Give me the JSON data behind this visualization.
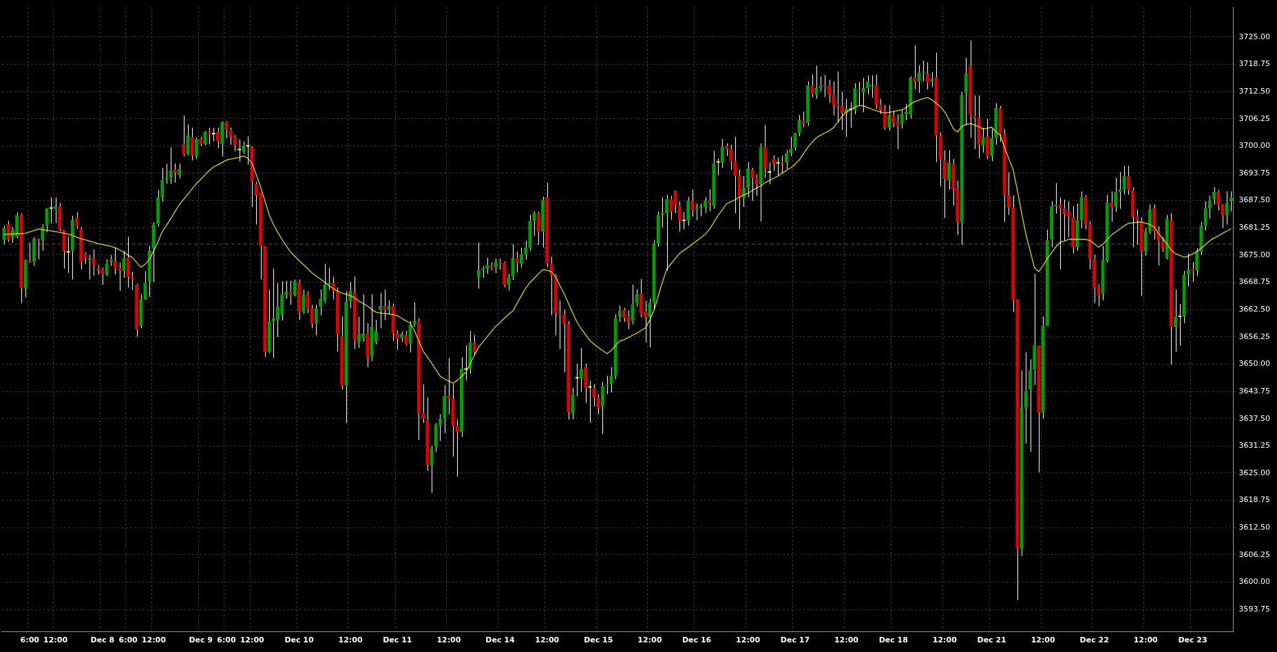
{
  "chart_data": {
    "type": "candlestick",
    "categories": [
      null,
      null,
      null,
      null,
      null,
      null,
      "6:00",
      null,
      null,
      null,
      null,
      null,
      "12:00",
      null,
      null,
      null,
      null,
      null,
      null,
      null,
      null,
      null,
      null,
      "Dec 8",
      null,
      null,
      null,
      null,
      null,
      "6:00",
      null,
      null,
      null,
      null,
      null,
      "12:00",
      null,
      null,
      null,
      null,
      null,
      null,
      null,
      null,
      null,
      null,
      "Dec 9",
      null,
      null,
      null,
      null,
      null,
      "6:00",
      null,
      null,
      null,
      null,
      null,
      "12:00",
      null,
      null,
      null,
      null,
      null,
      null,
      null,
      null,
      null,
      null,
      "Dec 10",
      null,
      null,
      null,
      null,
      null,
      null,
      null,
      null,
      null,
      null,
      null,
      "12:00",
      null,
      null,
      null,
      null,
      null,
      null,
      null,
      null,
      null,
      null,
      "Dec 11",
      null,
      null,
      null,
      null,
      null,
      null,
      null,
      null,
      null,
      null,
      null,
      "12:00",
      null,
      null,
      null,
      null,
      null,
      null,
      null,
      null,
      null,
      null,
      null,
      "Dec 14",
      null,
      null,
      null,
      null,
      null,
      null,
      null,
      null,
      null,
      null,
      "12:00",
      null,
      null,
      null,
      null,
      null,
      null,
      null,
      null,
      null,
      null,
      null,
      "Dec 15",
      null,
      null,
      null,
      null,
      null,
      null,
      null,
      null,
      null,
      null,
      null,
      "12:00",
      null,
      null,
      null,
      null,
      null,
      null,
      null,
      null,
      null,
      null,
      "Dec 16",
      null,
      null,
      null,
      null,
      null,
      null,
      null,
      null,
      null,
      null,
      null,
      "12:00",
      null,
      null,
      null,
      null,
      null,
      null,
      null,
      null,
      null,
      null,
      "Dec 17",
      null,
      null,
      null,
      null,
      null,
      null,
      null,
      null,
      null,
      null,
      null,
      "12:00",
      null,
      null,
      null,
      null,
      null,
      null,
      null,
      null,
      null,
      null,
      "Dec 18",
      null,
      null,
      null,
      null,
      null,
      null,
      null,
      null,
      null,
      null,
      null,
      "12:00",
      null,
      null,
      null,
      null,
      null,
      null,
      null,
      null,
      null,
      null,
      "Dec 21",
      null,
      null,
      null,
      null,
      null,
      null,
      null,
      null,
      null,
      null,
      null,
      "12:00",
      null,
      null,
      null,
      null,
      null,
      null,
      null,
      null,
      null,
      null,
      null,
      "Dec 22",
      null,
      null,
      null,
      null,
      null,
      null,
      null,
      null,
      null,
      null,
      null,
      "12:00",
      null,
      null,
      null,
      null,
      null,
      null,
      null,
      null,
      null,
      null,
      "Dec 23",
      null,
      null,
      null,
      null,
      null,
      null,
      null,
      null,
      null
    ],
    "ohlc": [
      [
        3678.4,
        3681.7,
        3677.5,
        3681.2
      ],
      [
        3682.1,
        3682.8,
        3678.0,
        3678.5
      ],
      [
        3679.0,
        3681.4,
        3677.8,
        3680.8
      ],
      [
        3679.2,
        3684.8,
        3678.8,
        3684.2
      ],
      [
        3684.2,
        3684.5,
        3664.0,
        3667.5
      ],
      [
        3667.3,
        3674.0,
        3665.3,
        3673.8
      ],
      [
        3673.8,
        3677.9,
        3673.2,
        3673.4
      ],
      [
        3673.5,
        3679.1,
        3672.5,
        3678.7
      ],
      [
        3678.6,
        3678.8,
        3674.0,
        3678.3
      ],
      [
        3678.4,
        3682.1,
        3676.0,
        3681.5
      ],
      [
        3681.8,
        3685.7,
        3680.2,
        3685.7
      ],
      [
        3685.6,
        3688.2,
        3682.3,
        3685.6
      ],
      [
        3685.5,
        3688.2,
        3682.3,
        3686.2
      ],
      [
        3686.2,
        3686.9,
        3680.5,
        3681.0
      ],
      [
        3680.8,
        3680.8,
        3671.9,
        3675.9
      ],
      [
        3675.6,
        3679.2,
        3670.9,
        3675.6
      ],
      [
        3676.0,
        3684.0,
        3669.4,
        3683.0
      ],
      [
        3683.5,
        3684.8,
        3681.0,
        3681.7
      ],
      [
        3681.0,
        3681.4,
        3671.7,
        3673.3
      ],
      [
        3675.3,
        3675.6,
        3673.0,
        3674.4
      ],
      [
        3673.9,
        3675.0,
        3669.4,
        3674.4
      ],
      [
        3674.2,
        3676.3,
        3670.2,
        3672.7
      ],
      [
        3671.9,
        3672.7,
        3670.5,
        3671.5
      ],
      [
        3671.7,
        3672.1,
        3668.2,
        3670.7
      ],
      [
        3670.5,
        3674.0,
        3670.2,
        3673.0
      ],
      [
        3673.4,
        3675.0,
        3672.5,
        3673.9
      ],
      [
        3673.6,
        3676.7,
        3670.5,
        3671.9
      ],
      [
        3671.9,
        3673.3,
        3666.8,
        3671.4
      ],
      [
        3671.4,
        3676.0,
        3669.8,
        3674.3
      ],
      [
        3674.4,
        3679.2,
        3667.6,
        3670.0
      ],
      [
        3670.0,
        3671.2,
        3667.0,
        3669.5
      ],
      [
        3668.1,
        3668.4,
        3656.2,
        3658.0
      ],
      [
        3658.7,
        3666.0,
        3658.2,
        3664.9
      ],
      [
        3664.9,
        3671.3,
        3664.7,
        3668.5
      ],
      [
        3669.0,
        3677.1,
        3665.4,
        3676.0
      ],
      [
        3676.6,
        3682.5,
        3668.8,
        3682.0
      ],
      [
        3682.1,
        3689.9,
        3681.5,
        3688.2
      ],
      [
        3688.2,
        3695.0,
        3687.2,
        3692.2
      ],
      [
        3692.3,
        3695.9,
        3691.3,
        3692.8
      ],
      [
        3692.8,
        3699.7,
        3691.3,
        3694.3
      ],
      [
        3694.5,
        3696.0,
        3691.6,
        3693.9
      ],
      [
        3693.4,
        3696.0,
        3692.6,
        3694.7
      ],
      [
        3700.4,
        3707.0,
        3697.6,
        3698.1
      ],
      [
        3698.1,
        3705.0,
        3697.8,
        3702.5
      ],
      [
        3702.1,
        3704.2,
        3696.7,
        3697.8
      ],
      [
        3697.6,
        3702.0,
        3697.0,
        3701.5
      ],
      [
        3701.6,
        3702.1,
        3700.0,
        3700.5
      ],
      [
        3700.5,
        3703.4,
        3700.2,
        3703.2
      ],
      [
        3703.2,
        3704.2,
        3700.4,
        3702.8
      ],
      [
        3702.7,
        3704.2,
        3701.1,
        3702.7
      ],
      [
        3703.2,
        3704.2,
        3699.5,
        3701.1
      ],
      [
        3700.5,
        3705.7,
        3697.6,
        3705.5
      ],
      [
        3705.5,
        3705.7,
        3701.8,
        3703.8
      ],
      [
        3703.6,
        3704.2,
        3700.3,
        3702.1
      ],
      [
        3702.1,
        3702.5,
        3698.8,
        3700.1
      ],
      [
        3699.0,
        3701.5,
        3696.4,
        3699.0
      ],
      [
        3698.8,
        3701.1,
        3698.2,
        3700.1
      ],
      [
        3699.9,
        3702.2,
        3695.7,
        3699.9
      ],
      [
        3699.8,
        3700.0,
        3686.0,
        3691.8
      ],
      [
        3691.3,
        3691.8,
        3682.0,
        3688.7
      ],
      [
        3689.3,
        3689.3,
        3669.4,
        3677.1
      ],
      [
        3677.1,
        3677.1,
        3651.6,
        3652.8
      ],
      [
        3652.8,
        3667.1,
        3652.5,
        3659.9
      ],
      [
        3659.8,
        3671.9,
        3651.4,
        3660.5
      ],
      [
        3660.1,
        3668.6,
        3656.2,
        3663.2
      ],
      [
        3661.4,
        3669.0,
        3660.0,
        3666.1
      ],
      [
        3665.8,
        3669.1,
        3665.0,
        3666.6
      ],
      [
        3666.5,
        3669.1,
        3663.6,
        3665.8
      ],
      [
        3665.8,
        3669.4,
        3665.5,
        3669.0
      ],
      [
        3668.8,
        3669.4,
        3660.1,
        3662.0
      ],
      [
        3662.0,
        3667.1,
        3661.5,
        3666.1
      ],
      [
        3666.1,
        3666.7,
        3661.7,
        3662.8
      ],
      [
        3662.8,
        3663.6,
        3658.2,
        3659.3
      ],
      [
        3659.3,
        3663.6,
        3656.6,
        3662.8
      ],
      [
        3663.2,
        3667.1,
        3661.2,
        3664.9
      ],
      [
        3664.5,
        3673.0,
        3664.0,
        3668.2
      ],
      [
        3668.2,
        3672.1,
        3667.0,
        3668.6
      ],
      [
        3668.6,
        3670.0,
        3664.8,
        3666.8
      ],
      [
        3666.8,
        3667.6,
        3652.9,
        3656.8
      ],
      [
        3656.3,
        3660.9,
        3644.2,
        3645.1
      ],
      [
        3645.1,
        3666.7,
        3636.5,
        3664.3
      ],
      [
        3664.4,
        3668.8,
        3662.8,
        3666.7
      ],
      [
        3666.3,
        3670.1,
        3653.5,
        3655.5
      ],
      [
        3655.1,
        3660.9,
        3653.7,
        3657.0
      ],
      [
        3656.0,
        3666.0,
        3655.1,
        3657.0
      ],
      [
        3657.0,
        3659.4,
        3649.3,
        3651.5
      ],
      [
        3651.7,
        3666.0,
        3650.7,
        3658.6
      ],
      [
        3655.1,
        3660.1,
        3654.5,
        3657.6
      ],
      [
        3662.5,
        3666.3,
        3658.2,
        3663.3
      ],
      [
        3663.3,
        3667.1,
        3660.1,
        3662.5
      ],
      [
        3662.5,
        3664.6,
        3661.4,
        3663.3
      ],
      [
        3663.3,
        3663.9,
        3655.3,
        3657.0
      ],
      [
        3657.0,
        3657.8,
        3653.3,
        3655.8
      ],
      [
        3655.9,
        3657.5,
        3655.1,
        3657.0
      ],
      [
        3656.7,
        3657.6,
        3654.3,
        3654.7
      ],
      [
        3654.7,
        3659.9,
        3652.7,
        3659.1
      ],
      [
        3659.1,
        3664.2,
        3658.5,
        3659.9
      ],
      [
        3659.8,
        3660.5,
        3632.6,
        3638.8
      ],
      [
        3638.8,
        3645.3,
        3636.5,
        3637.5
      ],
      [
        3637.2,
        3642.4,
        3625.5,
        3626.9
      ],
      [
        3626.7,
        3631.3,
        3620.5,
        3630.5
      ],
      [
        3631.1,
        3636.5,
        3629.8,
        3636.1
      ],
      [
        3636.0,
        3638.5,
        3632.4,
        3637.5
      ],
      [
        3637.5,
        3645.2,
        3634.2,
        3642.7
      ],
      [
        3642.7,
        3651.4,
        3638.5,
        3642.0
      ],
      [
        3642.0,
        3645.4,
        3628.8,
        3635.8
      ],
      [
        3635.8,
        3637.3,
        3624.2,
        3634.4
      ],
      [
        3634.4,
        3651.6,
        3633.3,
        3648.9
      ],
      [
        3648.7,
        3654.3,
        3646.2,
        3648.7
      ],
      [
        3648.9,
        3657.6,
        3647.8,
        3654.9
      ],
      [
        3654.9,
        3656.7,
        3652.0,
        3652.8
      ],
      [
        3669.9,
        3677.9,
        3667.3,
        3671.5
      ],
      [
        3671.5,
        3672.5,
        3669.8,
        3671.9
      ],
      [
        3671.8,
        3674.4,
        3670.7,
        3672.7
      ],
      [
        3672.7,
        3673.3,
        3671.5,
        3672.1
      ],
      [
        3672.2,
        3674.2,
        3670.9,
        3673.5
      ],
      [
        3673.5,
        3674.2,
        3671.6,
        3673.2
      ],
      [
        3673.2,
        3673.5,
        3667.6,
        3668.2
      ],
      [
        3668.2,
        3670.7,
        3666.9,
        3669.9
      ],
      [
        3670.1,
        3677.5,
        3669.3,
        3674.4
      ],
      [
        3674.3,
        3675.8,
        3671.0,
        3673.3
      ],
      [
        3673.0,
        3676.7,
        3672.2,
        3675.2
      ],
      [
        3675.2,
        3678.3,
        3673.9,
        3676.7
      ],
      [
        3676.7,
        3684.2,
        3676.0,
        3682.8
      ],
      [
        3682.8,
        3685.0,
        3679.5,
        3684.6
      ],
      [
        3684.6,
        3685.0,
        3677.3,
        3680.4
      ],
      [
        3680.4,
        3688.4,
        3676.7,
        3687.7
      ],
      [
        3688.2,
        3691.6,
        3672.2,
        3673.0
      ],
      [
        3673.0,
        3674.6,
        3661.2,
        3670.4
      ],
      [
        3670.4,
        3670.7,
        3656.6,
        3661.7
      ],
      [
        3661.7,
        3664.6,
        3653.5,
        3661.3
      ],
      [
        3661.3,
        3662.5,
        3648.1,
        3659.2
      ],
      [
        3659.2,
        3659.9,
        3637.3,
        3639.0
      ],
      [
        3638.7,
        3644.6,
        3637.4,
        3643.1
      ],
      [
        3646.7,
        3650.1,
        3642.6,
        3646.7
      ],
      [
        3646.7,
        3653.7,
        3643.7,
        3648.9
      ],
      [
        3649.3,
        3650.1,
        3641.1,
        3644.6
      ],
      [
        3644.6,
        3646.2,
        3636.5,
        3644.6
      ],
      [
        3644.4,
        3645.4,
        3640.3,
        3642.3
      ],
      [
        3642.3,
        3643.1,
        3638.5,
        3640.0
      ],
      [
        3640.2,
        3645.9,
        3634.0,
        3644.9
      ],
      [
        3644.9,
        3647.3,
        3643.1,
        3645.2
      ],
      [
        3645.4,
        3649.3,
        3643.5,
        3647.3
      ],
      [
        3647.3,
        3661.4,
        3646.5,
        3660.6
      ],
      [
        3660.9,
        3663.4,
        3659.7,
        3662.2
      ],
      [
        3662.4,
        3662.9,
        3659.7,
        3660.6
      ],
      [
        3660.8,
        3662.3,
        3658.0,
        3659.7
      ],
      [
        3659.9,
        3668.2,
        3659.1,
        3663.7
      ],
      [
        3664.0,
        3667.2,
        3663.2,
        3666.0
      ],
      [
        3666.2,
        3669.5,
        3660.8,
        3661.5
      ],
      [
        3662.0,
        3664.5,
        3655.0,
        3660.8
      ],
      [
        3660.8,
        3665.0,
        3653.8,
        3664.0
      ],
      [
        3664.0,
        3678.4,
        3662.4,
        3677.6
      ],
      [
        3677.6,
        3685.0,
        3676.9,
        3684.2
      ],
      [
        3684.2,
        3688.3,
        3681.3,
        3684.6
      ],
      [
        3684.6,
        3688.8,
        3671.4,
        3687.8
      ],
      [
        3687.8,
        3688.6,
        3683.1,
        3685.0
      ],
      [
        3689.8,
        3689.8,
        3684.6,
        3686.5
      ],
      [
        3686.3,
        3687.3,
        3680.4,
        3682.9
      ],
      [
        3682.8,
        3684.9,
        3680.9,
        3682.8
      ],
      [
        3682.9,
        3688.3,
        3681.7,
        3687.5
      ],
      [
        3687.5,
        3690.0,
        3683.8,
        3685.4
      ],
      [
        3685.5,
        3686.8,
        3683.0,
        3685.8
      ],
      [
        3685.8,
        3686.8,
        3683.9,
        3686.0
      ],
      [
        3686.0,
        3688.3,
        3684.6,
        3687.5
      ],
      [
        3687.5,
        3690.1,
        3685.0,
        3687.0
      ],
      [
        3686.3,
        3698.9,
        3685.6,
        3696.0
      ],
      [
        3696.2,
        3697.1,
        3693.3,
        3696.2
      ],
      [
        3696.2,
        3701.6,
        3695.0,
        3699.8
      ],
      [
        3700.0,
        3700.6,
        3697.7,
        3699.3
      ],
      [
        3699.3,
        3700.3,
        3694.5,
        3696.6
      ],
      [
        3696.6,
        3702.1,
        3684.6,
        3693.1
      ],
      [
        3693.1,
        3694.7,
        3680.9,
        3688.1
      ],
      [
        3688.1,
        3693.1,
        3686.0,
        3690.4
      ],
      [
        3690.4,
        3696.3,
        3688.2,
        3694.8
      ],
      [
        3694.6,
        3695.0,
        3687.4,
        3692.7
      ],
      [
        3692.7,
        3693.5,
        3688.6,
        3691.2
      ],
      [
        3691.2,
        3700.6,
        3682.7,
        3699.7
      ],
      [
        3699.7,
        3704.8,
        3692.7,
        3694.8
      ],
      [
        3693.9,
        3696.3,
        3691.2,
        3693.9
      ],
      [
        3697.1,
        3697.8,
        3694.3,
        3696.0
      ],
      [
        3696.0,
        3697.4,
        3693.1,
        3696.0
      ],
      [
        3696.2,
        3697.8,
        3693.9,
        3695.8
      ],
      [
        3696.2,
        3699.0,
        3694.7,
        3698.4
      ],
      [
        3698.4,
        3702.1,
        3697.7,
        3699.3
      ],
      [
        3699.7,
        3703.0,
        3698.9,
        3703.0
      ],
      [
        3703.0,
        3707.1,
        3702.2,
        3705.9
      ],
      [
        3705.9,
        3707.9,
        3704.3,
        3705.1
      ],
      [
        3705.3,
        3714.8,
        3704.6,
        3713.9
      ],
      [
        3713.9,
        3716.4,
        3711.2,
        3712.0
      ],
      [
        3711.8,
        3718.4,
        3710.8,
        3713.3
      ],
      [
        3713.3,
        3715.9,
        3712.5,
        3713.9
      ],
      [
        3713.9,
        3716.3,
        3711.2,
        3713.6
      ],
      [
        3713.9,
        3715.2,
        3709.9,
        3711.8
      ],
      [
        3711.7,
        3714.8,
        3707.0,
        3709.4
      ],
      [
        3709.6,
        3717.1,
        3705.4,
        3709.2
      ],
      [
        3709.2,
        3712.4,
        3703.7,
        3707.6
      ],
      [
        3707.6,
        3710.8,
        3702.1,
        3708.5
      ],
      [
        3708.3,
        3710.0,
        3704.2,
        3708.3
      ],
      [
        3708.3,
        3714.4,
        3707.3,
        3713.2
      ],
      [
        3712.8,
        3714.7,
        3709.3,
        3712.6
      ],
      [
        3712.3,
        3715.6,
        3707.7,
        3713.3
      ],
      [
        3713.3,
        3716.2,
        3711.8,
        3714.8
      ],
      [
        3713.7,
        3716.2,
        3711.1,
        3713.9
      ],
      [
        3713.9,
        3716.4,
        3708.5,
        3709.4
      ],
      [
        3709.4,
        3710.8,
        3707.3,
        3708.3
      ],
      [
        3708.3,
        3709.4,
        3703.7,
        3704.3
      ],
      [
        3704.3,
        3709.4,
        3703.5,
        3707.0
      ],
      [
        3707.0,
        3708.1,
        3704.3,
        3705.1
      ],
      [
        3705.4,
        3707.3,
        3699.3,
        3704.7
      ],
      [
        3705.1,
        3708.3,
        3704.0,
        3707.3
      ],
      [
        3707.3,
        3709.6,
        3705.9,
        3707.8
      ],
      [
        3707.2,
        3716.0,
        3706.3,
        3715.7
      ],
      [
        3715.7,
        3723.1,
        3713.0,
        3714.8
      ],
      [
        3714.8,
        3718.5,
        3712.2,
        3716.8
      ],
      [
        3716.8,
        3719.6,
        3714.8,
        3717.1
      ],
      [
        3716.6,
        3719.2,
        3713.0,
        3714.5
      ],
      [
        3714.8,
        3716.9,
        3713.5,
        3715.4
      ],
      [
        3715.7,
        3721.4,
        3696.3,
        3702.4
      ],
      [
        3702.4,
        3703.1,
        3690.7,
        3697.0
      ],
      [
        3696.7,
        3699.0,
        3683.5,
        3692.5
      ],
      [
        3692.1,
        3699.0,
        3690.0,
        3696.1
      ],
      [
        3695.9,
        3697.0,
        3686.3,
        3690.1
      ],
      [
        3690.4,
        3692.1,
        3679.6,
        3682.6
      ],
      [
        3682.6,
        3712.4,
        3677.3,
        3711.7
      ],
      [
        3712.1,
        3720.2,
        3704.8,
        3716.6
      ],
      [
        3718.4,
        3724.2,
        3701.9,
        3707.2
      ],
      [
        3706.9,
        3711.6,
        3699.3,
        3706.4
      ],
      [
        3706.3,
        3711.6,
        3697.2,
        3700.4
      ],
      [
        3700.2,
        3704.2,
        3698.5,
        3702.0
      ],
      [
        3702.2,
        3706.2,
        3697.0,
        3697.7
      ],
      [
        3697.7,
        3703.9,
        3696.5,
        3701.8
      ],
      [
        3701.8,
        3709.8,
        3700.3,
        3708.7
      ],
      [
        3708.7,
        3709.2,
        3701.0,
        3702.7
      ],
      [
        3702.7,
        3703.9,
        3682.6,
        3688.7
      ],
      [
        3688.7,
        3694.0,
        3684.2,
        3685.9
      ],
      [
        3685.9,
        3688.7,
        3661.9,
        3664.6
      ],
      [
        3664.9,
        3664.9,
        3595.9,
        3607.6
      ],
      [
        3607.6,
        3648.6,
        3606.0,
        3640.0
      ],
      [
        3640.0,
        3652.7,
        3631.8,
        3643.8
      ],
      [
        3644.2,
        3651.1,
        3629.9,
        3648.6
      ],
      [
        3648.7,
        3670.7,
        3645.2,
        3654.3
      ],
      [
        3654.3,
        3654.3,
        3625.2,
        3638.9
      ],
      [
        3638.9,
        3660.9,
        3637.5,
        3658.7
      ],
      [
        3658.7,
        3680.8,
        3658.7,
        3678.4
      ],
      [
        3678.6,
        3687.3,
        3676.8,
        3686.2
      ],
      [
        3686.2,
        3691.5,
        3684.5,
        3686.5
      ],
      [
        3686.5,
        3688.2,
        3671.7,
        3685.7
      ],
      [
        3685.7,
        3687.7,
        3678.3,
        3684.4
      ],
      [
        3685.0,
        3687.3,
        3679.1,
        3683.8
      ],
      [
        3683.6,
        3686.2,
        3675.4,
        3676.8
      ],
      [
        3676.8,
        3686.8,
        3676.0,
        3683.0
      ],
      [
        3683.0,
        3689.6,
        3681.2,
        3688.3
      ],
      [
        3688.3,
        3688.8,
        3680.9,
        3682.0
      ],
      [
        3682.0,
        3682.8,
        3671.7,
        3674.1
      ],
      [
        3674.1,
        3675.1,
        3664.0,
        3667.5
      ],
      [
        3667.8,
        3668.3,
        3663.3,
        3665.8
      ],
      [
        3666.2,
        3677.1,
        3664.6,
        3673.9
      ],
      [
        3673.7,
        3688.8,
        3673.2,
        3687.0
      ],
      [
        3687.0,
        3689.6,
        3682.6,
        3685.9
      ],
      [
        3686.2,
        3692.7,
        3684.9,
        3689.5
      ],
      [
        3689.5,
        3694.0,
        3685.6,
        3690.1
      ],
      [
        3690.1,
        3695.5,
        3688.9,
        3693.1
      ],
      [
        3693.1,
        3695.5,
        3688.8,
        3689.9
      ],
      [
        3689.9,
        3690.5,
        3676.8,
        3683.8
      ],
      [
        3683.8,
        3685.5,
        3677.4,
        3683.0
      ],
      [
        3682.8,
        3683.6,
        3665.6,
        3675.9
      ],
      [
        3675.9,
        3681.2,
        3674.9,
        3680.4
      ],
      [
        3680.4,
        3686.6,
        3679.8,
        3685.4
      ],
      [
        3685.7,
        3686.6,
        3678.6,
        3680.4
      ],
      [
        3680.4,
        3681.6,
        3672.6,
        3678.3
      ],
      [
        3678.1,
        3679.1,
        3675.7,
        3676.5
      ],
      [
        3674.3,
        3684.2,
        3674.0,
        3683.3
      ],
      [
        3683.0,
        3684.6,
        3649.9,
        3658.5
      ],
      [
        3658.5,
        3667.1,
        3652.8,
        3660.9
      ],
      [
        3660.8,
        3663.8,
        3654.2,
        3660.8
      ],
      [
        3660.9,
        3671.4,
        3659.4,
        3670.5
      ],
      [
        3670.5,
        3675.4,
        3667.8,
        3671.7
      ],
      [
        3671.7,
        3673.4,
        3668.9,
        3671.3
      ],
      [
        3671.5,
        3676.6,
        3670.2,
        3675.9
      ],
      [
        3675.9,
        3682.6,
        3675.0,
        3681.8
      ],
      [
        3681.8,
        3687.3,
        3680.6,
        3685.7
      ],
      [
        3685.7,
        3688.6,
        3683.3,
        3687.5
      ],
      [
        3687.8,
        3690.6,
        3686.6,
        3689.5
      ],
      [
        3689.5,
        3689.9,
        3685.2,
        3686.5
      ],
      [
        3686.5,
        3686.6,
        3681.2,
        3684.1
      ],
      [
        3684.1,
        3689.6,
        3682.0,
        3686.9
      ],
      [
        3687.4,
        3689.6,
        3685.0,
        3688.1
      ]
    ],
    "colors": [
      "#00a000",
      "#e00000",
      "#00a000",
      "#00a000",
      "#e00000",
      "#00a000",
      "#e00000",
      "#00a000",
      "#e00000",
      "#00a000",
      "#00a000",
      "#ffff00",
      "#00a000",
      "#e00000",
      "#e00000",
      "#ffff00",
      "#00a000",
      "#e00000",
      "#e00000",
      "#e00000",
      "#00a000",
      "#e00000",
      "#e00000",
      "#e00000",
      "#00a000",
      "#00a000",
      "#e00000",
      "#e00000",
      "#00a000",
      "#e00000",
      "#e00000",
      "#e00000",
      "#00a000",
      "#00a000",
      "#00a000",
      "#00a000",
      "#00a000",
      "#00a000",
      "#00a000",
      "#00a000",
      "#e00000",
      "#00a000",
      "#e00000",
      "#00a000",
      "#e00000",
      "#00a000",
      "#e00000",
      "#00a000",
      "#e00000",
      "#ffff00",
      "#e00000",
      "#00a000",
      "#e00000",
      "#e00000",
      "#e00000",
      "#ffff00",
      "#00a000",
      "#ffff00",
      "#e00000",
      "#e00000",
      "#e00000",
      "#e00000",
      "#00a000",
      "#00a000",
      "#00a000",
      "#00a000",
      "#00a000",
      "#e00000",
      "#00a000",
      "#e00000",
      "#00a000",
      "#e00000",
      "#e00000",
      "#00a000",
      "#00a000",
      "#00a000",
      "#00a000",
      "#e00000",
      "#e00000",
      "#e00000",
      "#00a000",
      "#00a000",
      "#e00000",
      "#00a000",
      "#00a000",
      "#e00000",
      "#00a000",
      "#00a000",
      "#00a000",
      "#e00000",
      "#00a000",
      "#e00000",
      "#e00000",
      "#00a000",
      "#e00000",
      "#00a000",
      "#00a000",
      "#e00000",
      "#e00000",
      "#e00000",
      "#00a000",
      "#00a000",
      "#00a000",
      "#00a000",
      "#e00000",
      "#e00000",
      "#e00000",
      "#00a000",
      "#ffff00",
      "#00a000",
      "#e00000",
      "#00a000",
      "#00a000",
      "#00a000",
      "#e00000",
      "#00a000",
      "#e00000",
      "#e00000",
      "#00a000",
      "#00a000",
      "#e00000",
      "#00a000",
      "#00a000",
      "#00a000",
      "#00a000",
      "#e00000",
      "#00a000",
      "#e00000",
      "#e00000",
      "#e00000",
      "#e00000",
      "#e00000",
      "#e00000",
      "#00a000",
      "#ffff00",
      "#00a000",
      "#e00000",
      "#ffff00",
      "#e00000",
      "#e00000",
      "#00a000",
      "#00a000",
      "#00a000",
      "#00a000",
      "#00a000",
      "#e00000",
      "#e00000",
      "#00a000",
      "#00a000",
      "#e00000",
      "#e00000",
      "#00a000",
      "#00a000",
      "#00a000",
      "#00a000",
      "#00a000",
      "#e00000",
      "#e00000",
      "#e00000",
      "#ffff00",
      "#00a000",
      "#e00000",
      "#00a000",
      "#00a000",
      "#00a000",
      "#e00000",
      "#00a000",
      "#ffff00",
      "#00a000",
      "#e00000",
      "#e00000",
      "#e00000",
      "#e00000",
      "#00a000",
      "#00a000",
      "#e00000",
      "#e00000",
      "#00a000",
      "#e00000",
      "#ffff00",
      "#e00000",
      "#ffff00",
      "#e00000",
      "#00a000",
      "#00a000",
      "#00a000",
      "#00a000",
      "#e00000",
      "#00a000",
      "#e00000",
      "#00a000",
      "#00a000",
      "#e00000",
      "#e00000",
      "#e00000",
      "#e00000",
      "#e00000",
      "#00a000",
      "#ffff00",
      "#00a000",
      "#e00000",
      "#00a000",
      "#00a000",
      "#00a000",
      "#e00000",
      "#e00000",
      "#e00000",
      "#00a000",
      "#e00000",
      "#e00000",
      "#00a000",
      "#00a000",
      "#00a000",
      "#e00000",
      "#00a000",
      "#00a000",
      "#e00000",
      "#00a000",
      "#e00000",
      "#e00000",
      "#e00000",
      "#00a000",
      "#e00000",
      "#e00000",
      "#00a000",
      "#00a000",
      "#e00000",
      "#e00000",
      "#e00000",
      "#00a000",
      "#e00000",
      "#00a000",
      "#00a000",
      "#e00000",
      "#e00000",
      "#e00000",
      "#e00000",
      "#e00000",
      "#00a000",
      "#00a000",
      "#00a000",
      "#00a000",
      "#e00000",
      "#00a000",
      "#00a000",
      "#00a000",
      "#00a000",
      "#e00000",
      "#e00000",
      "#e00000",
      "#e00000",
      "#00a000",
      "#00a000",
      "#e00000",
      "#e00000",
      "#e00000",
      "#e00000",
      "#00a000",
      "#00a000",
      "#e00000",
      "#00a000",
      "#00a000",
      "#00a000",
      "#e00000",
      "#e00000",
      "#e00000",
      "#e00000",
      "#00a000",
      "#00a000",
      "#e00000",
      "#e00000",
      "#e00000",
      "#00a000",
      "#e00000",
      "#00a000",
      "#ffff00",
      "#00a000",
      "#00a000",
      "#e00000",
      "#00a000",
      "#00a000",
      "#00a000",
      "#00a000",
      "#00a000",
      "#e00000",
      "#e00000",
      "#00a000",
      "#00a000"
    ],
    "series": [
      {
        "type": "line",
        "color": "#d8d800",
        "marker": "none",
        "line_style": "solid",
        "values": [
          3679.7,
          3679.8,
          3679.8,
          3679.9,
          3679.9,
          3680.0,
          3680.3,
          3680.6,
          3681.0,
          3680.8,
          3680.7,
          3680.5,
          3680.4,
          3680.2,
          3680.0,
          3679.8,
          3679.5,
          3679.1,
          3678.7,
          3678.5,
          3678.2,
          3677.9,
          3677.6,
          3677.4,
          3677.2,
          3677.0,
          3676.7,
          3676.2,
          3675.6,
          3675.0,
          3674.4,
          3673.3,
          3672.2,
          3672.9,
          3674.0,
          3676.0,
          3678.0,
          3680.4,
          3681.8,
          3683.4,
          3685.0,
          3686.6,
          3687.8,
          3689.0,
          3690.2,
          3691.4,
          3692.4,
          3693.4,
          3694.4,
          3695.2,
          3695.7,
          3696.2,
          3696.8,
          3697.0,
          3697.2,
          3697.4,
          3697.7,
          3697.2,
          3696.0,
          3693.4,
          3690.6,
          3687.4,
          3684.2,
          3682.0,
          3680.2,
          3678.6,
          3677.1,
          3675.7,
          3674.7,
          3673.7,
          3672.8,
          3671.9,
          3670.9,
          3670.2,
          3669.5,
          3668.7,
          3668.0,
          3667.3,
          3666.7,
          3666.3,
          3666.0,
          3665.7,
          3665.2,
          3664.4,
          3663.9,
          3663.3,
          3662.5,
          3661.9,
          3661.7,
          3661.6,
          3661.5,
          3661.3,
          3661.1,
          3660.5,
          3659.9,
          3659.4,
          3657.6,
          3655.3,
          3653.0,
          3651.6,
          3650.2,
          3648.7,
          3647.2,
          3646.6,
          3646.1,
          3645.6,
          3646.3,
          3647.2,
          3648.1,
          3650.1,
          3652.0,
          3653.9,
          3655.1,
          3656.3,
          3657.5,
          3658.7,
          3659.5,
          3660.5,
          3661.4,
          3662.2,
          3664.0,
          3665.7,
          3667.4,
          3668.7,
          3669.7,
          3670.7,
          3671.7,
          3671.5,
          3671.2,
          3670.0,
          3668.0,
          3666.1,
          3663.9,
          3661.7,
          3659.6,
          3658.1,
          3656.8,
          3655.4,
          3654.6,
          3653.8,
          3653.1,
          3652.4,
          3653.1,
          3654.3,
          3655.3,
          3655.6,
          3656.1,
          3656.6,
          3657.1,
          3657.7,
          3658.3,
          3660.1,
          3662.3,
          3665.6,
          3668.9,
          3671.8,
          3673.0,
          3674.2,
          3675.4,
          3676.1,
          3676.8,
          3677.5,
          3678.3,
          3679.0,
          3679.8,
          3680.9,
          3682.5,
          3684.1,
          3685.4,
          3686.8,
          3687.2,
          3687.7,
          3688.3,
          3688.8,
          3689.2,
          3689.8,
          3690.4,
          3690.9,
          3691.6,
          3692.1,
          3692.6,
          3693.1,
          3693.8,
          3694.4,
          3695.0,
          3695.8,
          3696.8,
          3698.3,
          3699.7,
          3700.9,
          3701.9,
          3702.5,
          3703.0,
          3703.5,
          3704.2,
          3705.5,
          3706.8,
          3707.8,
          3708.3,
          3708.9,
          3709.3,
          3709.2,
          3708.8,
          3708.4,
          3708.1,
          3707.8,
          3707.6,
          3707.7,
          3707.9,
          3708.1,
          3708.3,
          3708.8,
          3709.6,
          3710.2,
          3710.5,
          3710.9,
          3711.1,
          3710.6,
          3709.8,
          3709.0,
          3707.8,
          3706.0,
          3704.0,
          3703.2,
          3704.5,
          3704.9,
          3705.2,
          3704.8,
          3704.4,
          3703.9,
          3704.1,
          3704.3,
          3703.2,
          3702.5,
          3699.7,
          3697.1,
          3694.6,
          3689.8,
          3684.6,
          3679.7,
          3675.9,
          3672.1,
          3671.2,
          3672.6,
          3674.2,
          3675.5,
          3676.9,
          3677.9,
          3678.2,
          3678.6,
          3678.6,
          3678.6,
          3678.6,
          3678.6,
          3678.3,
          3677.6,
          3676.8,
          3677.5,
          3678.5,
          3679.6,
          3680.3,
          3681.0,
          3681.7,
          3682.3,
          3682.4,
          3682.5,
          3682.6,
          3682.3,
          3682.0,
          3681.4,
          3680.0,
          3678.8,
          3677.5,
          3676.1,
          3675.3,
          3674.9,
          3674.5,
          3674.8,
          3675.3,
          3675.8,
          3676.6,
          3677.4,
          3678.3,
          3678.9,
          3679.4,
          3680.0,
          3680.5,
          3681.0
        ]
      }
    ],
    "ylim": [
      3588.6,
      3731.8
    ],
    "yticks": [
      {
        "value": 3593.75,
        "label": "3593.75"
      },
      {
        "value": 3600,
        "label": "3600.00"
      },
      {
        "value": 3606.25,
        "label": "3606.25"
      },
      {
        "value": 3612.5,
        "label": "3612.50"
      },
      {
        "value": 3618.75,
        "label": "3618.75"
      },
      {
        "value": 3625,
        "label": "3625.00"
      },
      {
        "value": 3631.25,
        "label": "3631.25"
      },
      {
        "value": 3637.5,
        "label": "3637.50"
      },
      {
        "value": 3643.75,
        "label": "3643.75"
      },
      {
        "value": 3650,
        "label": "3650.00"
      },
      {
        "value": 3656.25,
        "label": "3656.25"
      },
      {
        "value": 3662.5,
        "label": "3662.50"
      },
      {
        "value": 3668.75,
        "label": "3668.75"
      },
      {
        "value": 3675,
        "label": "3675.00"
      },
      {
        "value": 3681.25,
        "label": "3681.25"
      },
      {
        "value": 3687.5,
        "label": "3687.50"
      },
      {
        "value": 3693.75,
        "label": "3693.75"
      },
      {
        "value": 3700,
        "label": "3700.00"
      },
      {
        "value": 3706.25,
        "label": "3706.25"
      },
      {
        "value": 3712.5,
        "label": "3712.50"
      },
      {
        "value": 3718.75,
        "label": "3718.75"
      },
      {
        "value": 3725,
        "label": "3725.00"
      }
    ],
    "ref_lines": [
      {
        "axis": "y",
        "value": 3677.5,
        "color": "#5a5a5a",
        "line_style": "dashed"
      }
    ],
    "grid": true,
    "legend": false
  }
}
